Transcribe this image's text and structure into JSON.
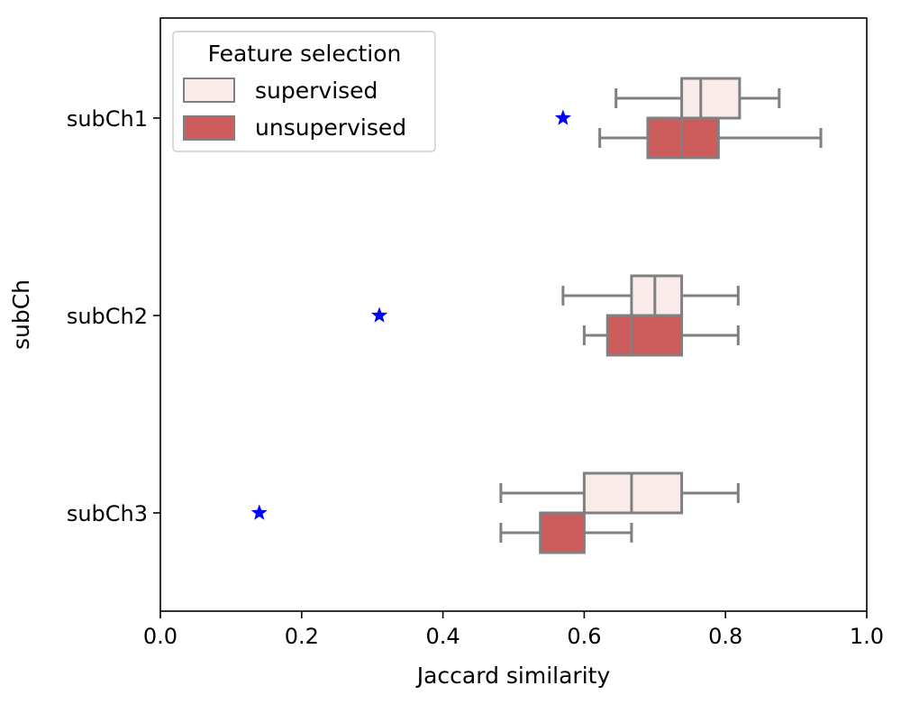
{
  "chart_data": {
    "type": "boxplot",
    "orientation": "horizontal",
    "xlabel": "Jaccard similarity",
    "ylabel": "subCh",
    "xlim": [
      0.0,
      1.0
    ],
    "xticks": [
      "0.0",
      "0.2",
      "0.4",
      "0.6",
      "0.8",
      "1.0"
    ],
    "categories": [
      "subCh1",
      "subCh2",
      "subCh3"
    ],
    "legend": {
      "title": "Feature selection",
      "placement": "upper-left",
      "entries": [
        "supervised",
        "unsupervised"
      ]
    },
    "series": [
      {
        "name": "supervised",
        "color": "#f9ebea",
        "boxes": [
          {
            "category": "subCh1",
            "whisker_low": 0.645,
            "q1": 0.738,
            "median": 0.765,
            "q3": 0.82,
            "whisker_high": 0.876
          },
          {
            "category": "subCh2",
            "whisker_low": 0.57,
            "q1": 0.667,
            "median": 0.7,
            "q3": 0.738,
            "whisker_high": 0.818
          },
          {
            "category": "subCh3",
            "whisker_low": 0.482,
            "q1": 0.6,
            "median": 0.667,
            "q3": 0.738,
            "whisker_high": 0.818
          }
        ]
      },
      {
        "name": "unsupervised",
        "color": "#cd5c5c",
        "boxes": [
          {
            "category": "subCh1",
            "whisker_low": 0.622,
            "q1": 0.69,
            "median": 0.738,
            "q3": 0.79,
            "whisker_high": 0.935
          },
          {
            "category": "subCh2",
            "whisker_low": 0.6,
            "q1": 0.633,
            "median": 0.667,
            "q3": 0.738,
            "whisker_high": 0.818
          },
          {
            "category": "subCh3",
            "whisker_low": 0.482,
            "q1": 0.538,
            "median": 0.538,
            "q3": 0.6,
            "whisker_high": 0.667
          }
        ]
      }
    ],
    "markers": {
      "shape": "star",
      "color": "#0000ff",
      "points": [
        {
          "category": "subCh1",
          "x": 0.57
        },
        {
          "category": "subCh2",
          "x": 0.31
        },
        {
          "category": "subCh3",
          "x": 0.14
        }
      ]
    },
    "box_edge_color": "#808080",
    "grid": false
  }
}
